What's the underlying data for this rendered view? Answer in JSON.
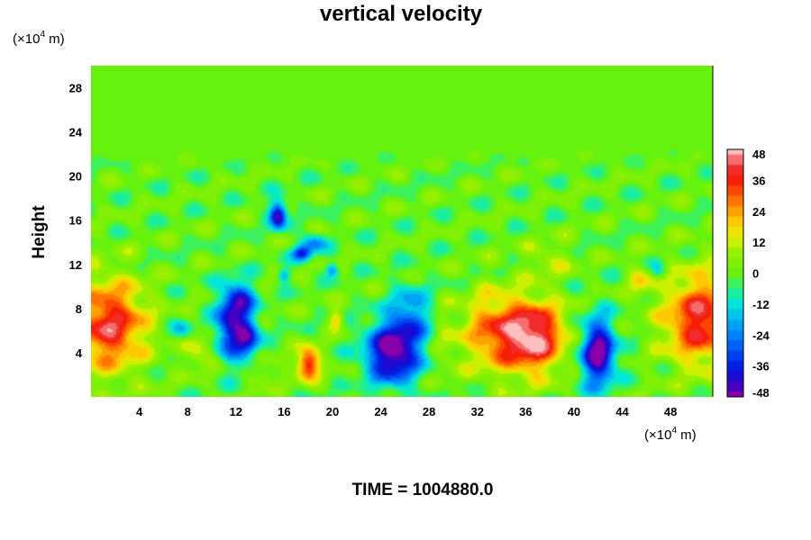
{
  "chart_data": {
    "type": "heatmap",
    "title": "vertical velocity",
    "ylabel": "Height",
    "xlabel": "",
    "x_unit_prefix": "(×10",
    "x_unit_exp": "4",
    "x_unit_suffix": " m)",
    "y_unit_prefix": "(×10",
    "y_unit_exp": "4",
    "y_unit_suffix": " m)",
    "xlim": [
      0,
      51.5
    ],
    "ylim": [
      0,
      30
    ],
    "x_ticks": [
      "4",
      "8",
      "12",
      "16",
      "20",
      "24",
      "28",
      "32",
      "36",
      "40",
      "44",
      "48"
    ],
    "y_ticks": [
      "4",
      "8",
      "12",
      "16",
      "20",
      "24",
      "28"
    ],
    "colorbar": {
      "range": [
        -48,
        48
      ],
      "tick_labels": [
        "48",
        "36",
        "24",
        "12",
        "0",
        "-12",
        "-24",
        "-36",
        "-48"
      ]
    },
    "features": [
      {
        "x": 1.5,
        "y": 6.5,
        "value": 40,
        "sx": 3.0,
        "sy": 4.0
      },
      {
        "x": 50.5,
        "y": 7.0,
        "value": 40,
        "sx": 3.0,
        "sy": 4.0
      },
      {
        "x": 36.5,
        "y": 5.5,
        "value": 50,
        "sx": 2.6,
        "sy": 3.2
      },
      {
        "x": 33.0,
        "y": 6.0,
        "value": 24,
        "sx": 2.2,
        "sy": 3.5
      },
      {
        "x": 18.0,
        "y": 3.0,
        "value": 44,
        "sx": 0.9,
        "sy": 1.4
      },
      {
        "x": 20.3,
        "y": 7.0,
        "value": 22,
        "sx": 0.6,
        "sy": 0.8
      },
      {
        "x": 25.0,
        "y": 4.0,
        "value": -52,
        "sx": 2.2,
        "sy": 2.8
      },
      {
        "x": 26.5,
        "y": 7.5,
        "value": -22,
        "sx": 1.6,
        "sy": 2.6
      },
      {
        "x": 42.0,
        "y": 4.0,
        "value": -52,
        "sx": 1.4,
        "sy": 3.0
      },
      {
        "x": 11.5,
        "y": 6.5,
        "value": -40,
        "sx": 1.2,
        "sy": 3.0
      },
      {
        "x": 13.0,
        "y": 5.5,
        "value": -36,
        "sx": 1.0,
        "sy": 2.0
      },
      {
        "x": 12.5,
        "y": 9.0,
        "value": -28,
        "sx": 1.2,
        "sy": 1.4
      },
      {
        "x": 15.5,
        "y": 16.5,
        "value": -46,
        "sx": 0.7,
        "sy": 1.3
      },
      {
        "x": 17.5,
        "y": 13.0,
        "value": -36,
        "sx": 0.8,
        "sy": 0.7
      },
      {
        "x": 18.5,
        "y": 14.0,
        "value": -22,
        "sx": 1.0,
        "sy": 0.8
      },
      {
        "x": 16.0,
        "y": 11.0,
        "value": -22,
        "sx": 0.5,
        "sy": 0.6
      },
      {
        "x": 20.0,
        "y": 11.5,
        "value": -24,
        "sx": 0.5,
        "sy": 0.6
      },
      {
        "x": 7.5,
        "y": 6.0,
        "value": -16,
        "sx": 0.8,
        "sy": 0.9
      },
      {
        "x": 9.0,
        "y": 4.0,
        "value": 14,
        "sx": 1.2,
        "sy": 1.5
      },
      {
        "x": 29.5,
        "y": 5.0,
        "value": 8,
        "sx": 1.2,
        "sy": 3.0
      },
      {
        "x": 45.5,
        "y": 10.5,
        "value": 14,
        "sx": 1.0,
        "sy": 1.4
      },
      {
        "x": 14.5,
        "y": 2.0,
        "value": 12,
        "sx": 1.0,
        "sy": 1.0
      },
      {
        "x": 38.0,
        "y": 12.5,
        "value": 10,
        "sx": 2.0,
        "sy": 1.5
      },
      {
        "x": 47.0,
        "y": 11.5,
        "value": -14,
        "sx": 0.6,
        "sy": 0.8
      }
    ]
  },
  "footer": {
    "time_label": "TIME = 1004880.0"
  }
}
